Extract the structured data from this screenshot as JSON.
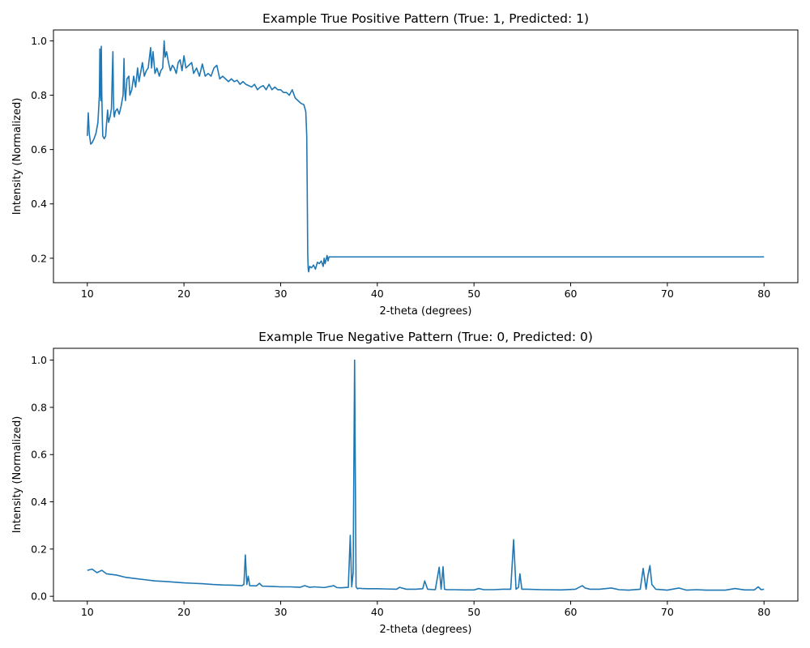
{
  "chart_data": [
    {
      "type": "line",
      "title": "Example True Positive Pattern (True: 1, Predicted: 1)",
      "xlabel": "2-theta (degrees)",
      "ylabel": "Intensity (Normalized)",
      "xlim": [
        6.5,
        83.5
      ],
      "ylim": [
        0.11,
        1.04
      ],
      "xticks": [
        10,
        20,
        30,
        40,
        50,
        60,
        70,
        80
      ],
      "yticks": [
        0.2,
        0.4,
        0.6,
        0.8,
        1.0
      ],
      "ytick_format": 1,
      "grid": false,
      "series": [
        {
          "color": "#1f77b4",
          "x": [
            10.0,
            10.1,
            10.2,
            10.35,
            10.5,
            10.7,
            10.9,
            11.1,
            11.25,
            11.3,
            11.35,
            11.4,
            11.45,
            11.5,
            11.55,
            11.6,
            11.75,
            11.9,
            12.0,
            12.1,
            12.2,
            12.35,
            12.5,
            12.6,
            12.65,
            12.7,
            12.75,
            12.8,
            12.9,
            13.1,
            13.3,
            13.5,
            13.7,
            13.8,
            13.85,
            13.95,
            14.1,
            14.3,
            14.4,
            14.6,
            14.8,
            15.0,
            15.2,
            15.35,
            15.5,
            15.7,
            15.9,
            16.1,
            16.3,
            16.55,
            16.65,
            16.8,
            17.0,
            17.2,
            17.45,
            17.6,
            17.8,
            17.95,
            18.05,
            18.2,
            18.4,
            18.6,
            18.8,
            19.0,
            19.2,
            19.4,
            19.6,
            19.8,
            20.0,
            20.2,
            20.5,
            20.8,
            21.0,
            21.3,
            21.6,
            21.9,
            22.2,
            22.5,
            22.8,
            23.1,
            23.4,
            23.7,
            24.0,
            24.3,
            24.6,
            24.9,
            25.2,
            25.5,
            25.8,
            26.1,
            26.4,
            26.7,
            27.0,
            27.3,
            27.6,
            27.9,
            28.2,
            28.5,
            28.8,
            29.1,
            29.4,
            29.7,
            30.0,
            30.3,
            30.6,
            30.9,
            31.2,
            31.5,
            31.8,
            32.1,
            32.4,
            32.6,
            32.7,
            32.75,
            32.8,
            32.85,
            32.9,
            33.0,
            33.2,
            33.4,
            33.6,
            33.8,
            34.0,
            34.2,
            34.4,
            34.5,
            34.6,
            34.8,
            34.9,
            35.0,
            35.2,
            40.0,
            50.0,
            60.0,
            70.0,
            80.0
          ],
          "y": [
            0.65,
            0.735,
            0.66,
            0.62,
            0.625,
            0.64,
            0.66,
            0.7,
            0.8,
            0.97,
            0.84,
            0.78,
            0.98,
            0.8,
            0.72,
            0.65,
            0.64,
            0.65,
            0.7,
            0.745,
            0.7,
            0.72,
            0.75,
            0.9,
            0.96,
            0.8,
            0.73,
            0.72,
            0.74,
            0.75,
            0.73,
            0.76,
            0.8,
            0.935,
            0.83,
            0.78,
            0.86,
            0.87,
            0.8,
            0.82,
            0.87,
            0.83,
            0.9,
            0.85,
            0.88,
            0.92,
            0.87,
            0.89,
            0.9,
            0.975,
            0.9,
            0.96,
            0.88,
            0.9,
            0.87,
            0.89,
            0.9,
            1.0,
            0.94,
            0.96,
            0.92,
            0.89,
            0.91,
            0.9,
            0.88,
            0.92,
            0.93,
            0.89,
            0.945,
            0.9,
            0.91,
            0.92,
            0.88,
            0.9,
            0.87,
            0.915,
            0.87,
            0.88,
            0.87,
            0.9,
            0.91,
            0.86,
            0.87,
            0.86,
            0.85,
            0.86,
            0.85,
            0.855,
            0.84,
            0.85,
            0.84,
            0.835,
            0.83,
            0.84,
            0.82,
            0.83,
            0.835,
            0.82,
            0.84,
            0.82,
            0.83,
            0.82,
            0.82,
            0.81,
            0.81,
            0.8,
            0.82,
            0.79,
            0.78,
            0.77,
            0.765,
            0.74,
            0.65,
            0.45,
            0.22,
            0.16,
            0.15,
            0.17,
            0.165,
            0.175,
            0.16,
            0.185,
            0.18,
            0.19,
            0.17,
            0.2,
            0.18,
            0.21,
            0.19,
            0.205,
            0.205,
            0.205,
            0.205,
            0.205,
            0.205,
            0.205
          ]
        }
      ]
    },
    {
      "type": "line",
      "title": "Example True Negative Pattern (True: 0, Predicted: 0)",
      "xlabel": "2-theta (degrees)",
      "ylabel": "Intensity (Normalized)",
      "xlim": [
        6.5,
        83.5
      ],
      "ylim": [
        -0.02,
        1.05
      ],
      "xticks": [
        10,
        20,
        30,
        40,
        50,
        60,
        70,
        80
      ],
      "yticks": [
        0.0,
        0.2,
        0.4,
        0.6,
        0.8,
        1.0
      ],
      "ytick_format": 1,
      "grid": false,
      "series": [
        {
          "color": "#1f77b4",
          "x": [
            10.0,
            10.5,
            11.0,
            11.5,
            12.0,
            13.0,
            14.0,
            15.0,
            16.0,
            17.0,
            18.0,
            19.0,
            20.0,
            21.0,
            22.0,
            23.0,
            24.0,
            25.0,
            26.0,
            26.2,
            26.35,
            26.5,
            26.65,
            26.8,
            27.5,
            27.8,
            28.1,
            29.0,
            30.0,
            31.0,
            32.0,
            32.5,
            33.0,
            33.5,
            34.5,
            35.5,
            35.8,
            36.2,
            37.0,
            37.2,
            37.35,
            37.5,
            37.65,
            37.8,
            37.95,
            38.1,
            38.4,
            39.0,
            40.0,
            41.0,
            42.0,
            42.3,
            43.0,
            44.0,
            44.7,
            44.9,
            45.2,
            46.0,
            46.4,
            46.6,
            46.8,
            46.95,
            47.2,
            48.0,
            49.0,
            50.0,
            50.5,
            51.0,
            52.0,
            53.0,
            53.8,
            54.1,
            54.35,
            54.6,
            54.75,
            54.95,
            55.5,
            57.0,
            59.0,
            60.5,
            61.2,
            61.5,
            62.0,
            63.0,
            64.2,
            65.0,
            66.0,
            67.2,
            67.5,
            67.8,
            68.0,
            68.2,
            68.4,
            68.8,
            70.0,
            71.2,
            72.0,
            73.0,
            74.0,
            75.0,
            76.0,
            77.0,
            78.0,
            79.0,
            79.4,
            79.7,
            80.0
          ],
          "y": [
            0.11,
            0.115,
            0.1,
            0.11,
            0.095,
            0.09,
            0.08,
            0.075,
            0.07,
            0.065,
            0.063,
            0.06,
            0.057,
            0.055,
            0.053,
            0.05,
            0.048,
            0.047,
            0.045,
            0.05,
            0.175,
            0.05,
            0.085,
            0.045,
            0.044,
            0.055,
            0.043,
            0.042,
            0.04,
            0.04,
            0.038,
            0.045,
            0.038,
            0.04,
            0.037,
            0.045,
            0.037,
            0.036,
            0.038,
            0.258,
            0.04,
            0.1,
            1.0,
            0.04,
            0.032,
            0.034,
            0.033,
            0.032,
            0.032,
            0.031,
            0.03,
            0.038,
            0.03,
            0.03,
            0.032,
            0.065,
            0.03,
            0.028,
            0.123,
            0.03,
            0.125,
            0.03,
            0.028,
            0.028,
            0.027,
            0.027,
            0.033,
            0.028,
            0.028,
            0.03,
            0.03,
            0.24,
            0.03,
            0.038,
            0.095,
            0.03,
            0.03,
            0.028,
            0.027,
            0.03,
            0.045,
            0.035,
            0.03,
            0.03,
            0.035,
            0.028,
            0.026,
            0.03,
            0.118,
            0.03,
            0.09,
            0.13,
            0.05,
            0.03,
            0.026,
            0.035,
            0.026,
            0.028,
            0.026,
            0.026,
            0.026,
            0.033,
            0.027,
            0.027,
            0.04,
            0.028,
            0.03
          ]
        }
      ]
    }
  ]
}
